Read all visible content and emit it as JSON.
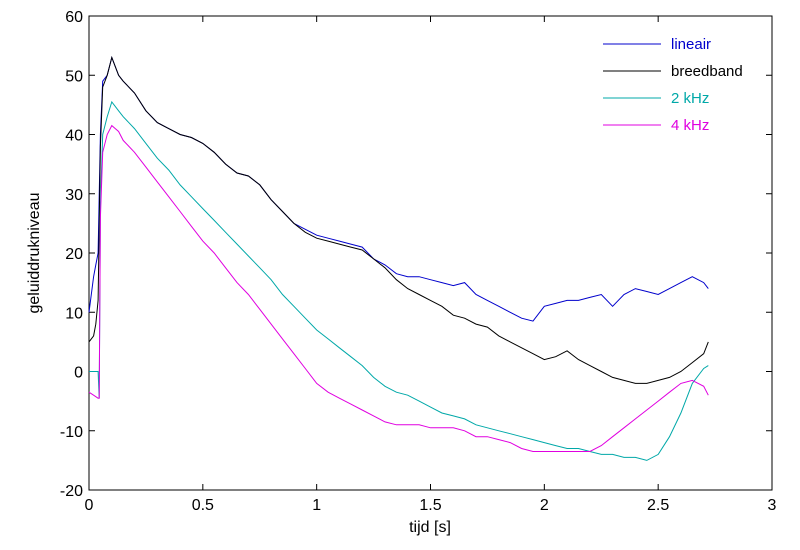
{
  "chart_data": {
    "type": "line",
    "title": "",
    "xlabel": "tijd  [s]",
    "ylabel": "geluiddrukniveau",
    "xlim": [
      0,
      3
    ],
    "ylim": [
      -20,
      60
    ],
    "x_ticks": [
      0,
      0.5,
      1,
      1.5,
      2,
      2.5,
      3
    ],
    "x_tick_labels": [
      "0",
      "0.5",
      "1",
      "1.5",
      "2",
      "2.5",
      "3"
    ],
    "y_ticks": [
      -20,
      -10,
      0,
      10,
      20,
      30,
      40,
      50,
      60
    ],
    "y_tick_labels": [
      "-20",
      "-10",
      "0",
      "10",
      "20",
      "30",
      "40",
      "50",
      "60"
    ],
    "grid": false,
    "legend_position": "top-right",
    "series": [
      {
        "name": "lineair",
        "color": "#0000cc",
        "points": [
          [
            0,
            10
          ],
          [
            0.02,
            16
          ],
          [
            0.03,
            18
          ],
          [
            0.04,
            20
          ],
          [
            0.05,
            40
          ],
          [
            0.06,
            49
          ],
          [
            0.08,
            50
          ],
          [
            0.1,
            53
          ],
          [
            0.13,
            50
          ],
          [
            0.15,
            49
          ],
          [
            0.2,
            47
          ],
          [
            0.25,
            44
          ],
          [
            0.3,
            42
          ],
          [
            0.35,
            41
          ],
          [
            0.4,
            40
          ],
          [
            0.45,
            39.5
          ],
          [
            0.5,
            38.5
          ],
          [
            0.55,
            37
          ],
          [
            0.6,
            35
          ],
          [
            0.65,
            33.5
          ],
          [
            0.7,
            33
          ],
          [
            0.75,
            31.5
          ],
          [
            0.8,
            29
          ],
          [
            0.85,
            27
          ],
          [
            0.9,
            25
          ],
          [
            0.95,
            24
          ],
          [
            1.0,
            23
          ],
          [
            1.05,
            22.5
          ],
          [
            1.1,
            22
          ],
          [
            1.15,
            21.5
          ],
          [
            1.2,
            21
          ],
          [
            1.25,
            19
          ],
          [
            1.3,
            18
          ],
          [
            1.35,
            16.5
          ],
          [
            1.4,
            16
          ],
          [
            1.45,
            16
          ],
          [
            1.5,
            15.5
          ],
          [
            1.55,
            15
          ],
          [
            1.6,
            14.5
          ],
          [
            1.65,
            15
          ],
          [
            1.7,
            13
          ],
          [
            1.75,
            12
          ],
          [
            1.8,
            11
          ],
          [
            1.85,
            10
          ],
          [
            1.9,
            9
          ],
          [
            1.95,
            8.5
          ],
          [
            2.0,
            11
          ],
          [
            2.05,
            11.5
          ],
          [
            2.1,
            12
          ],
          [
            2.15,
            12
          ],
          [
            2.2,
            12.5
          ],
          [
            2.25,
            13
          ],
          [
            2.3,
            11
          ],
          [
            2.35,
            13
          ],
          [
            2.4,
            14
          ],
          [
            2.45,
            13.5
          ],
          [
            2.5,
            13
          ],
          [
            2.55,
            14
          ],
          [
            2.6,
            15
          ],
          [
            2.65,
            16
          ],
          [
            2.7,
            15
          ],
          [
            2.72,
            14
          ]
        ]
      },
      {
        "name": "breedband",
        "color": "#000000",
        "points": [
          [
            0,
            5
          ],
          [
            0.02,
            6
          ],
          [
            0.03,
            8
          ],
          [
            0.04,
            12
          ],
          [
            0.05,
            38
          ],
          [
            0.06,
            48
          ],
          [
            0.08,
            50
          ],
          [
            0.1,
            53
          ],
          [
            0.13,
            50
          ],
          [
            0.15,
            49
          ],
          [
            0.2,
            47
          ],
          [
            0.25,
            44
          ],
          [
            0.3,
            42
          ],
          [
            0.35,
            41
          ],
          [
            0.4,
            40
          ],
          [
            0.45,
            39.5
          ],
          [
            0.5,
            38.5
          ],
          [
            0.55,
            37
          ],
          [
            0.6,
            35
          ],
          [
            0.65,
            33.5
          ],
          [
            0.7,
            33
          ],
          [
            0.75,
            31.5
          ],
          [
            0.8,
            29
          ],
          [
            0.85,
            27
          ],
          [
            0.9,
            25
          ],
          [
            0.95,
            23.5
          ],
          [
            1.0,
            22.5
          ],
          [
            1.05,
            22
          ],
          [
            1.1,
            21.5
          ],
          [
            1.15,
            21
          ],
          [
            1.2,
            20.5
          ],
          [
            1.25,
            19
          ],
          [
            1.3,
            17.5
          ],
          [
            1.35,
            15.5
          ],
          [
            1.4,
            14
          ],
          [
            1.45,
            13
          ],
          [
            1.5,
            12
          ],
          [
            1.55,
            11
          ],
          [
            1.6,
            9.5
          ],
          [
            1.65,
            9
          ],
          [
            1.7,
            8
          ],
          [
            1.75,
            7.5
          ],
          [
            1.8,
            6
          ],
          [
            1.85,
            5
          ],
          [
            1.9,
            4
          ],
          [
            1.95,
            3
          ],
          [
            2.0,
            2
          ],
          [
            2.05,
            2.5
          ],
          [
            2.1,
            3.5
          ],
          [
            2.15,
            2
          ],
          [
            2.2,
            1
          ],
          [
            2.25,
            0
          ],
          [
            2.3,
            -1
          ],
          [
            2.35,
            -1.5
          ],
          [
            2.4,
            -2
          ],
          [
            2.45,
            -2
          ],
          [
            2.5,
            -1.5
          ],
          [
            2.55,
            -1
          ],
          [
            2.6,
            0
          ],
          [
            2.65,
            1.5
          ],
          [
            2.7,
            3
          ],
          [
            2.72,
            5
          ]
        ]
      },
      {
        "name": "2 kHz",
        "color": "#00a8a8",
        "points": [
          [
            0,
            0
          ],
          [
            0.02,
            0
          ],
          [
            0.04,
            0
          ],
          [
            0.045,
            -4.5
          ],
          [
            0.05,
            28
          ],
          [
            0.06,
            40
          ],
          [
            0.08,
            43
          ],
          [
            0.1,
            45.5
          ],
          [
            0.13,
            44
          ],
          [
            0.15,
            43
          ],
          [
            0.2,
            41
          ],
          [
            0.25,
            38.5
          ],
          [
            0.3,
            36
          ],
          [
            0.35,
            34
          ],
          [
            0.4,
            31.5
          ],
          [
            0.45,
            29.5
          ],
          [
            0.5,
            27.5
          ],
          [
            0.55,
            25.5
          ],
          [
            0.6,
            23.5
          ],
          [
            0.65,
            21.5
          ],
          [
            0.7,
            19.5
          ],
          [
            0.75,
            17.5
          ],
          [
            0.8,
            15.5
          ],
          [
            0.85,
            13
          ],
          [
            0.9,
            11
          ],
          [
            0.95,
            9
          ],
          [
            1.0,
            7
          ],
          [
            1.05,
            5.5
          ],
          [
            1.1,
            4
          ],
          [
            1.15,
            2.5
          ],
          [
            1.2,
            1
          ],
          [
            1.25,
            -1
          ],
          [
            1.3,
            -2.5
          ],
          [
            1.35,
            -3.5
          ],
          [
            1.4,
            -4
          ],
          [
            1.45,
            -5
          ],
          [
            1.5,
            -6
          ],
          [
            1.55,
            -7
          ],
          [
            1.6,
            -7.5
          ],
          [
            1.65,
            -8
          ],
          [
            1.7,
            -9
          ],
          [
            1.75,
            -9.5
          ],
          [
            1.8,
            -10
          ],
          [
            1.85,
            -10.5
          ],
          [
            1.9,
            -11
          ],
          [
            1.95,
            -11.5
          ],
          [
            2.0,
            -12
          ],
          [
            2.05,
            -12.5
          ],
          [
            2.1,
            -13
          ],
          [
            2.15,
            -13
          ],
          [
            2.2,
            -13.5
          ],
          [
            2.25,
            -14
          ],
          [
            2.3,
            -14
          ],
          [
            2.35,
            -14.5
          ],
          [
            2.4,
            -14.5
          ],
          [
            2.45,
            -15
          ],
          [
            2.5,
            -14
          ],
          [
            2.55,
            -11
          ],
          [
            2.6,
            -7
          ],
          [
            2.65,
            -2
          ],
          [
            2.7,
            0.5
          ],
          [
            2.72,
            1
          ]
        ]
      },
      {
        "name": "4 kHz",
        "color": "#e000e0",
        "points": [
          [
            0,
            -3.5
          ],
          [
            0.02,
            -4
          ],
          [
            0.04,
            -4.5
          ],
          [
            0.045,
            -4.5
          ],
          [
            0.05,
            26
          ],
          [
            0.06,
            37
          ],
          [
            0.08,
            40
          ],
          [
            0.1,
            41.5
          ],
          [
            0.13,
            40.5
          ],
          [
            0.15,
            39
          ],
          [
            0.2,
            37
          ],
          [
            0.25,
            34.5
          ],
          [
            0.3,
            32
          ],
          [
            0.35,
            29.5
          ],
          [
            0.4,
            27
          ],
          [
            0.45,
            24.5
          ],
          [
            0.5,
            22
          ],
          [
            0.55,
            20
          ],
          [
            0.6,
            17.5
          ],
          [
            0.65,
            15
          ],
          [
            0.7,
            13
          ],
          [
            0.75,
            10.5
          ],
          [
            0.8,
            8
          ],
          [
            0.85,
            5.5
          ],
          [
            0.9,
            3
          ],
          [
            0.95,
            0.5
          ],
          [
            1.0,
            -2
          ],
          [
            1.05,
            -3.5
          ],
          [
            1.1,
            -4.5
          ],
          [
            1.15,
            -5.5
          ],
          [
            1.2,
            -6.5
          ],
          [
            1.25,
            -7.5
          ],
          [
            1.3,
            -8.5
          ],
          [
            1.35,
            -9
          ],
          [
            1.4,
            -9
          ],
          [
            1.45,
            -9
          ],
          [
            1.5,
            -9.5
          ],
          [
            1.55,
            -9.5
          ],
          [
            1.6,
            -9.5
          ],
          [
            1.65,
            -10
          ],
          [
            1.7,
            -11
          ],
          [
            1.75,
            -11
          ],
          [
            1.8,
            -11.5
          ],
          [
            1.85,
            -12
          ],
          [
            1.9,
            -13
          ],
          [
            1.95,
            -13.5
          ],
          [
            2.0,
            -13.5
          ],
          [
            2.05,
            -13.5
          ],
          [
            2.1,
            -13.5
          ],
          [
            2.15,
            -13.5
          ],
          [
            2.2,
            -13.5
          ],
          [
            2.25,
            -12.5
          ],
          [
            2.3,
            -11
          ],
          [
            2.35,
            -9.5
          ],
          [
            2.4,
            -8
          ],
          [
            2.45,
            -6.5
          ],
          [
            2.5,
            -5
          ],
          [
            2.55,
            -3.5
          ],
          [
            2.6,
            -2
          ],
          [
            2.65,
            -1.5
          ],
          [
            2.7,
            -2.5
          ],
          [
            2.72,
            -4
          ]
        ]
      }
    ]
  }
}
